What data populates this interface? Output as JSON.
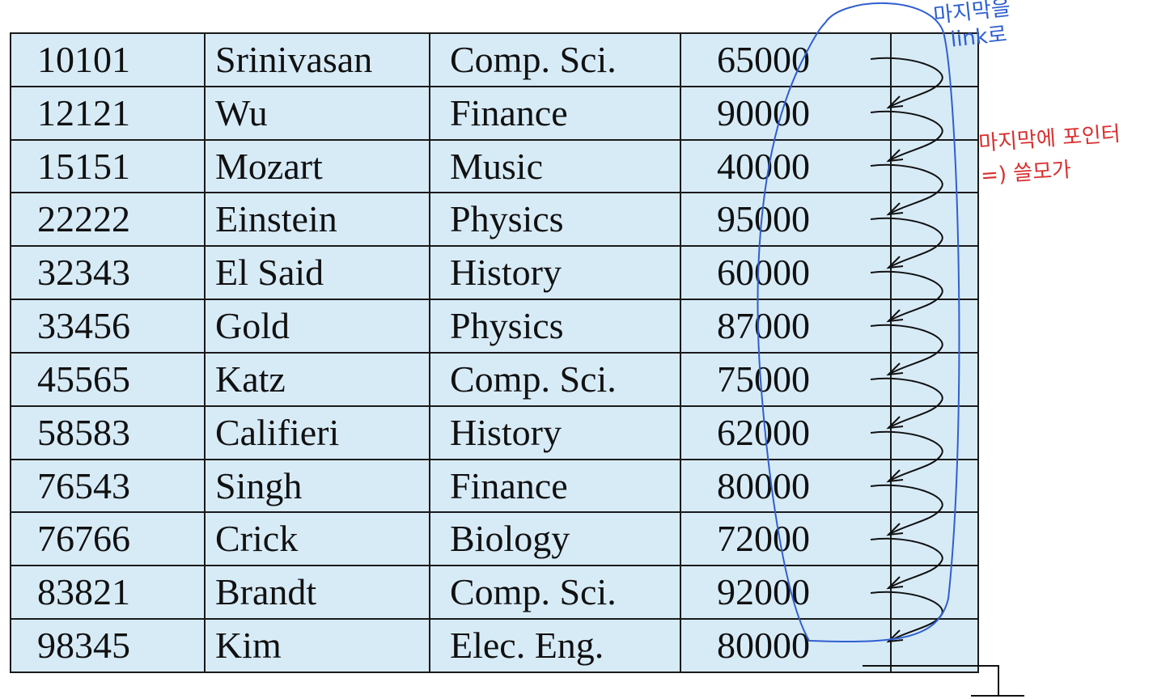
{
  "records": [
    {
      "id": "10101",
      "name": "Srinivasan",
      "dept": "Comp. Sci.",
      "salary": "65000"
    },
    {
      "id": "12121",
      "name": "Wu",
      "dept": "Finance",
      "salary": "90000"
    },
    {
      "id": "15151",
      "name": "Mozart",
      "dept": "Music",
      "salary": "40000"
    },
    {
      "id": "22222",
      "name": "Einstein",
      "dept": "Physics",
      "salary": "95000"
    },
    {
      "id": "32343",
      "name": "El Said",
      "dept": "History",
      "salary": "60000"
    },
    {
      "id": "33456",
      "name": "Gold",
      "dept": "Physics",
      "salary": "87000"
    },
    {
      "id": "45565",
      "name": "Katz",
      "dept": "Comp. Sci.",
      "salary": "75000"
    },
    {
      "id": "58583",
      "name": "Califieri",
      "dept": "History",
      "salary": "62000"
    },
    {
      "id": "76543",
      "name": "Singh",
      "dept": "Finance",
      "salary": "80000"
    },
    {
      "id": "76766",
      "name": "Crick",
      "dept": "Biology",
      "salary": "72000"
    },
    {
      "id": "83821",
      "name": "Brandt",
      "dept": "Comp. Sci.",
      "salary": "92000"
    },
    {
      "id": "98345",
      "name": "Kim",
      "dept": "Elec. Eng.",
      "salary": "80000"
    }
  ],
  "annotations": {
    "blue_note": [
      "마지막을",
      "link로"
    ],
    "red_note": [
      "마지막에 포인터",
      "=) 쓸모가"
    ]
  },
  "colors": {
    "table_fill": "#d7ebf7",
    "border": "#1a1a1a",
    "pointer_arrow": "#111111",
    "blue_annotation": "#2f5fd0",
    "red_annotation": "#d93030"
  },
  "icons": {
    "pointer": "curved-arrow-icon",
    "null_pointer": "ground-null-icon"
  }
}
